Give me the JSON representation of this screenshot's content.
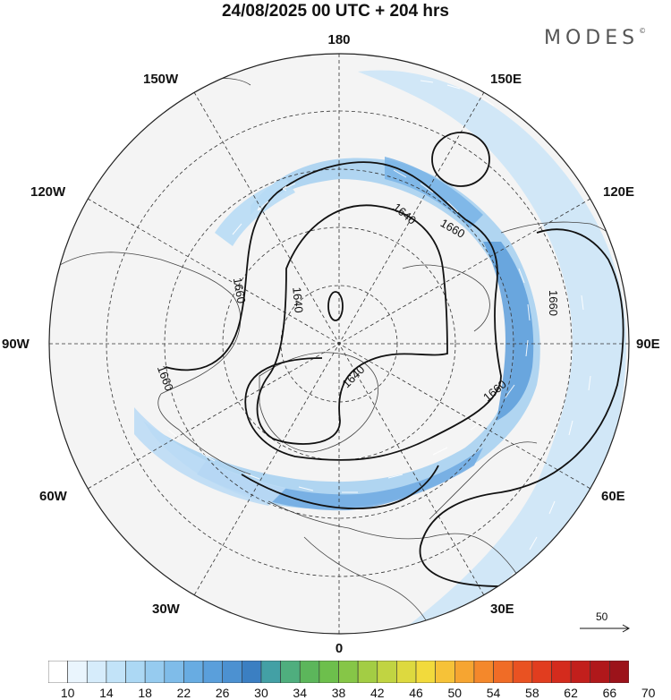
{
  "header": {
    "title": "24/08/2025  00 UTC  + 204 hrs",
    "brand": "MODES",
    "brand_mark": "©"
  },
  "map": {
    "projection": "north-polar-stereographic",
    "longitude_labels": {
      "top": "180",
      "bottom": "0",
      "left": "90W",
      "right": "90E",
      "upper_left_1": "150W",
      "upper_left_2": "120W",
      "upper_right_1": "150E",
      "upper_right_2": "120E",
      "lower_left_1": "60W",
      "lower_left_2": "30W",
      "lower_right_1": "60E",
      "lower_right_2": "30E"
    },
    "contour_labels": [
      "1660",
      "1640",
      "1660",
      "1660",
      "1640",
      "1660",
      "1640",
      "1660"
    ]
  },
  "reference_vector": {
    "value": "50"
  },
  "colorbar": {
    "labels": [
      "10",
      "14",
      "18",
      "22",
      "26",
      "30",
      "34",
      "38",
      "42",
      "46",
      "50",
      "54",
      "58",
      "62",
      "66",
      "70"
    ],
    "colors": [
      "#ffffff",
      "#eaf5fd",
      "#d6ecfb",
      "#c2e3f8",
      "#acd8f4",
      "#96cbef",
      "#7fbce9",
      "#68ace2",
      "#5a9fdb",
      "#4c91d1",
      "#3b7fc2",
      "#43a0a5",
      "#4fae7e",
      "#5cb65b",
      "#6dbf4c",
      "#86c647",
      "#a3cd44",
      "#c1d442",
      "#ddd93f",
      "#f2da3c",
      "#f6c238",
      "#f6a531",
      "#f4882b",
      "#f06c26",
      "#e95222",
      "#e13d1f",
      "#d42b1d",
      "#c21f1c",
      "#b0181b",
      "#9c131a"
    ]
  }
}
